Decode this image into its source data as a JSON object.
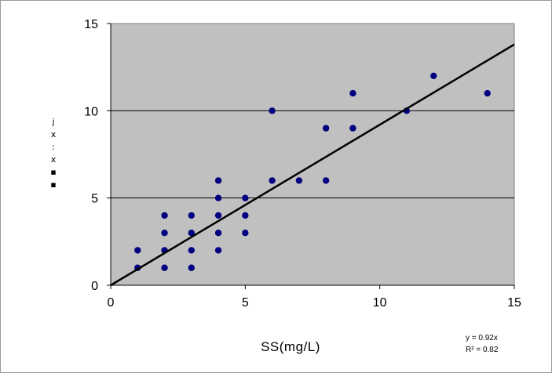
{
  "chart_data": {
    "type": "scatter",
    "xlabel": "SS(mg/L)",
    "ylabel": [
      "j",
      "x",
      ":",
      "x",
      "▪",
      "▪"
    ],
    "xlim": [
      0,
      15
    ],
    "ylim": [
      0,
      15
    ],
    "x_ticks": [
      "0",
      "5",
      "10",
      "15"
    ],
    "y_ticks": [
      "0",
      "5",
      "10",
      "15"
    ],
    "grid": "horizontal",
    "background_color": "#c0c0c0",
    "point_color": "#000080",
    "trendline_color": "#000000",
    "trendline": {
      "slope": 0.92,
      "intercept": 0
    },
    "equation": "y = 0.92x",
    "r_squared": "R² = 0.82",
    "points": [
      [
        1,
        1
      ],
      [
        1,
        2
      ],
      [
        2,
        1
      ],
      [
        2,
        2
      ],
      [
        2,
        3
      ],
      [
        2,
        4
      ],
      [
        3,
        1
      ],
      [
        3,
        2
      ],
      [
        3,
        3
      ],
      [
        3,
        4
      ],
      [
        4,
        2
      ],
      [
        4,
        3
      ],
      [
        4,
        4
      ],
      [
        4,
        5
      ],
      [
        4,
        6
      ],
      [
        5,
        3
      ],
      [
        5,
        4
      ],
      [
        5,
        5
      ],
      [
        6,
        6
      ],
      [
        6,
        10
      ],
      [
        7,
        6
      ],
      [
        8,
        6
      ],
      [
        8,
        9
      ],
      [
        9,
        9
      ],
      [
        9,
        11
      ],
      [
        11,
        10
      ],
      [
        12,
        12
      ],
      [
        14,
        11
      ]
    ]
  }
}
